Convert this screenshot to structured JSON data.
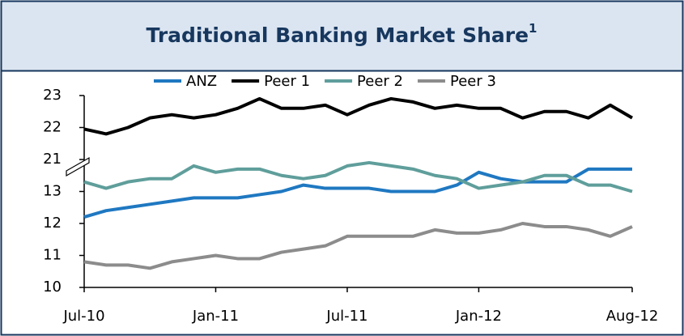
{
  "chart_data": {
    "type": "line",
    "title": "Traditional Banking Market Share",
    "title_note": "1",
    "categories": [
      "Jul-10",
      null,
      null,
      null,
      null,
      null,
      "Jan-11",
      null,
      null,
      null,
      null,
      null,
      "Jul-11",
      null,
      null,
      null,
      null,
      null,
      "Jan-12",
      null,
      null,
      null,
      null,
      null,
      null,
      "Aug-12"
    ],
    "ylim": [
      10,
      23
    ],
    "yticks": [
      10,
      11,
      12,
      13,
      21,
      22,
      23
    ],
    "y_break": [
      14,
      21
    ],
    "legend": "top",
    "series": [
      {
        "name": "ANZ",
        "color": "#1f78c1",
        "values": [
          12.2,
          12.4,
          12.5,
          12.6,
          12.7,
          12.8,
          12.8,
          12.8,
          12.9,
          13.0,
          13.2,
          13.1,
          13.1,
          13.1,
          13.0,
          13.0,
          13.0,
          13.2,
          13.6,
          13.4,
          13.3,
          13.3,
          13.3,
          13.7,
          13.7,
          13.7
        ]
      },
      {
        "name": "Peer 1",
        "color": "#000000",
        "values": [
          21.95,
          21.8,
          22.0,
          22.3,
          22.4,
          22.3,
          22.4,
          22.6,
          22.9,
          22.6,
          22.6,
          22.7,
          22.4,
          22.7,
          22.9,
          22.8,
          22.6,
          22.7,
          22.6,
          22.6,
          22.3,
          22.5,
          22.5,
          22.3,
          22.7,
          22.3
        ]
      },
      {
        "name": "Peer 2",
        "color": "#5f9e9b",
        "values": [
          13.3,
          13.1,
          13.3,
          13.4,
          13.4,
          13.8,
          13.6,
          13.7,
          13.7,
          13.5,
          13.4,
          13.5,
          13.8,
          13.9,
          13.8,
          13.7,
          13.5,
          13.4,
          13.1,
          13.2,
          13.3,
          13.5,
          13.5,
          13.2,
          13.2,
          13.0
        ]
      },
      {
        "name": "Peer 3",
        "color": "#8c8c8c",
        "values": [
          10.8,
          10.7,
          10.7,
          10.6,
          10.8,
          10.9,
          11.0,
          10.9,
          10.9,
          11.1,
          11.2,
          11.3,
          11.6,
          11.6,
          11.6,
          11.6,
          11.8,
          11.7,
          11.7,
          11.8,
          12.0,
          11.9,
          11.9,
          11.8,
          11.6,
          11.9
        ]
      }
    ]
  }
}
